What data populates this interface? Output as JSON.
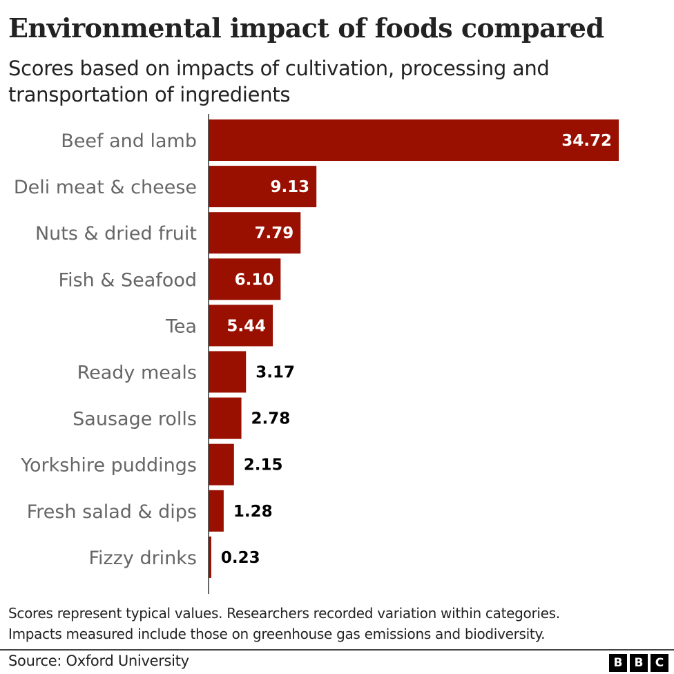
{
  "header": {
    "title": "Environmental impact of foods compared",
    "subtitle": "Scores based on impacts of cultivation, processing and transportation of ingredients"
  },
  "chart_data": {
    "type": "bar",
    "orientation": "horizontal",
    "title": "Environmental impact of foods compared",
    "subtitle": "Scores based on impacts of cultivation, processing and transportation of ingredients",
    "xlabel": "",
    "ylabel": "",
    "categories": [
      "Beef and lamb",
      "Deli meat & cheese",
      "Nuts & dried fruit",
      "Fish & Seafood",
      "Tea",
      "Ready meals",
      "Sausage rolls",
      "Yorkshire puddings",
      "Fresh salad & dips",
      "Fizzy drinks"
    ],
    "values": [
      34.72,
      9.13,
      7.79,
      6.1,
      5.44,
      3.17,
      2.78,
      2.15,
      1.28,
      0.23
    ],
    "value_labels": [
      "34.72",
      "9.13",
      "7.79",
      "6.10",
      "5.44",
      "3.17",
      "2.78",
      "2.15",
      "1.28",
      "0.23"
    ],
    "xlim": [
      0,
      34.72
    ],
    "grid": false,
    "legend": "none",
    "bar_color": "#990f00"
  },
  "footer": {
    "note_line1": "Scores represent typical values. Researchers recorded variation within categories.",
    "note_line2": "Impacts measured include those on greenhouse gas emissions and biodiversity.",
    "source": "Source: Oxford University",
    "logo_letters": [
      "B",
      "B",
      "C"
    ]
  }
}
